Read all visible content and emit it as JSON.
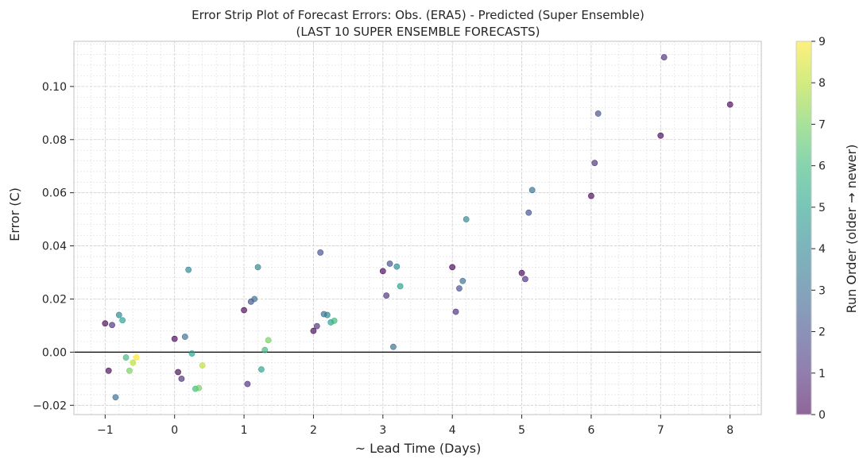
{
  "chart_data": {
    "type": "scatter",
    "title": "Error Strip Plot of Forecast Errors: Obs. (ERA5) - Predicted (Super Ensemble)",
    "subtitle": "(LAST 10 SUPER ENSEMBLE FORECASTS)",
    "xlabel": "~ Lead Time (Days)",
    "ylabel": "Error (C)",
    "xlim": [
      -1.45,
      8.45
    ],
    "ylim": [
      -0.0235,
      0.117
    ],
    "x_ticks": [
      -1,
      0,
      1,
      2,
      3,
      4,
      5,
      6,
      7,
      8
    ],
    "x_tick_labels": [
      "−1",
      "0",
      "1",
      "2",
      "3",
      "4",
      "5",
      "6",
      "7",
      "8"
    ],
    "y_ticks": [
      -0.02,
      0.0,
      0.02,
      0.04,
      0.06,
      0.08,
      0.1
    ],
    "y_tick_labels": [
      "−0.02",
      "0.00",
      "0.02",
      "0.04",
      "0.06",
      "0.08",
      "0.10"
    ],
    "grid": true,
    "reference_line_y": 0,
    "colorbar": {
      "label": "Run Order (older → newer)",
      "min": 0,
      "max": 9,
      "ticks": [
        "0",
        "1",
        "2",
        "3",
        "4",
        "5",
        "6",
        "7",
        "8",
        "9"
      ],
      "colormap": "viridis"
    },
    "points": [
      {
        "x": -1.0,
        "y": 0.0108,
        "run": 0
      },
      {
        "x": -0.95,
        "y": -0.007,
        "run": 0
      },
      {
        "x": -0.9,
        "y": 0.0102,
        "run": 1
      },
      {
        "x": -0.85,
        "y": -0.017,
        "run": 3
      },
      {
        "x": -0.8,
        "y": 0.014,
        "run": 4
      },
      {
        "x": -0.75,
        "y": 0.012,
        "run": 5
      },
      {
        "x": -0.7,
        "y": -0.002,
        "run": 6
      },
      {
        "x": -0.65,
        "y": -0.007,
        "run": 7
      },
      {
        "x": -0.6,
        "y": -0.004,
        "run": 8
      },
      {
        "x": -0.55,
        "y": -0.002,
        "run": 9
      },
      {
        "x": 0.0,
        "y": 0.005,
        "run": 0
      },
      {
        "x": 0.05,
        "y": -0.0075,
        "run": 0
      },
      {
        "x": 0.1,
        "y": -0.01,
        "run": 1
      },
      {
        "x": 0.15,
        "y": 0.0058,
        "run": 3
      },
      {
        "x": 0.2,
        "y": 0.031,
        "run": 4
      },
      {
        "x": 0.25,
        "y": -0.0005,
        "run": 5
      },
      {
        "x": 0.3,
        "y": -0.0138,
        "run": 6
      },
      {
        "x": 0.35,
        "y": -0.0135,
        "run": 7
      },
      {
        "x": 0.4,
        "y": -0.005,
        "run": 8
      },
      {
        "x": 1.0,
        "y": 0.0158,
        "run": 0
      },
      {
        "x": 1.05,
        "y": -0.012,
        "run": 1
      },
      {
        "x": 1.1,
        "y": 0.019,
        "run": 2
      },
      {
        "x": 1.15,
        "y": 0.02,
        "run": 3
      },
      {
        "x": 1.2,
        "y": 0.032,
        "run": 4
      },
      {
        "x": 1.25,
        "y": -0.0065,
        "run": 5
      },
      {
        "x": 1.3,
        "y": 0.0008,
        "run": 6
      },
      {
        "x": 1.35,
        "y": 0.0045,
        "run": 7
      },
      {
        "x": 2.0,
        "y": 0.008,
        "run": 0
      },
      {
        "x": 2.05,
        "y": 0.0098,
        "run": 1
      },
      {
        "x": 2.1,
        "y": 0.0375,
        "run": 2
      },
      {
        "x": 2.15,
        "y": 0.0143,
        "run": 3
      },
      {
        "x": 2.2,
        "y": 0.014,
        "run": 4
      },
      {
        "x": 2.25,
        "y": 0.0112,
        "run": 5
      },
      {
        "x": 2.3,
        "y": 0.0118,
        "run": 6
      },
      {
        "x": 3.0,
        "y": 0.0305,
        "run": 0
      },
      {
        "x": 3.05,
        "y": 0.0213,
        "run": 1
      },
      {
        "x": 3.1,
        "y": 0.0333,
        "run": 2
      },
      {
        "x": 3.15,
        "y": 0.002,
        "run": 3
      },
      {
        "x": 3.2,
        "y": 0.0322,
        "run": 4
      },
      {
        "x": 3.25,
        "y": 0.0248,
        "run": 5
      },
      {
        "x": 4.0,
        "y": 0.032,
        "run": 0
      },
      {
        "x": 4.05,
        "y": 0.0152,
        "run": 1
      },
      {
        "x": 4.1,
        "y": 0.024,
        "run": 2
      },
      {
        "x": 4.15,
        "y": 0.0268,
        "run": 3
      },
      {
        "x": 4.2,
        "y": 0.05,
        "run": 4
      },
      {
        "x": 5.0,
        "y": 0.0298,
        "run": 0
      },
      {
        "x": 5.05,
        "y": 0.0275,
        "run": 1
      },
      {
        "x": 5.1,
        "y": 0.0525,
        "run": 2
      },
      {
        "x": 5.15,
        "y": 0.061,
        "run": 3
      },
      {
        "x": 6.0,
        "y": 0.0588,
        "run": 0
      },
      {
        "x": 6.05,
        "y": 0.0712,
        "run": 1
      },
      {
        "x": 6.1,
        "y": 0.0898,
        "run": 2
      },
      {
        "x": 7.0,
        "y": 0.0815,
        "run": 0
      },
      {
        "x": 7.05,
        "y": 0.111,
        "run": 1
      },
      {
        "x": 8.0,
        "y": 0.0932,
        "run": 0
      }
    ]
  }
}
